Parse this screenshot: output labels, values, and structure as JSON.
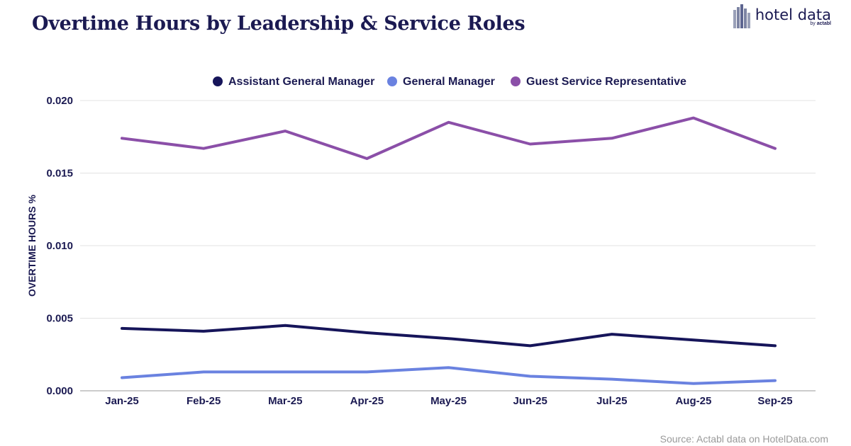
{
  "title": "Overtime Hours by Leadership & Service Roles",
  "logo": {
    "name": "hotel data",
    "by": "by",
    "brand": "actabl"
  },
  "source": "Source: Actabl data on HotelData.com",
  "chart_data": {
    "type": "line",
    "title": "Overtime Hours by Leadership & Service Roles",
    "xlabel": "",
    "ylabel": "OVERTIME HOURS %",
    "categories": [
      "Jan-25",
      "Feb-25",
      "Mar-25",
      "Apr-25",
      "May-25",
      "Jun-25",
      "Jul-25",
      "Aug-25",
      "Sep-25"
    ],
    "ylim": [
      0,
      0.02
    ],
    "yticks": [
      "0.000",
      "0.005",
      "0.010",
      "0.015",
      "0.020"
    ],
    "grid": true,
    "legend": "top-center",
    "series": [
      {
        "name": "Assistant General Manager",
        "color": "#16155a",
        "values": [
          0.0043,
          0.0041,
          0.0045,
          0.004,
          0.0036,
          0.0031,
          0.0039,
          0.0035,
          0.0031
        ]
      },
      {
        "name": "General Manager",
        "color": "#6a82e0",
        "values": [
          0.0009,
          0.0013,
          0.0013,
          0.0013,
          0.0016,
          0.001,
          0.0008,
          0.0005,
          0.0007
        ]
      },
      {
        "name": "Guest Service Representative",
        "color": "#8b4fa8",
        "values": [
          0.0174,
          0.0167,
          0.0179,
          0.016,
          0.0185,
          0.017,
          0.0174,
          0.0188,
          0.0167
        ]
      }
    ]
  }
}
